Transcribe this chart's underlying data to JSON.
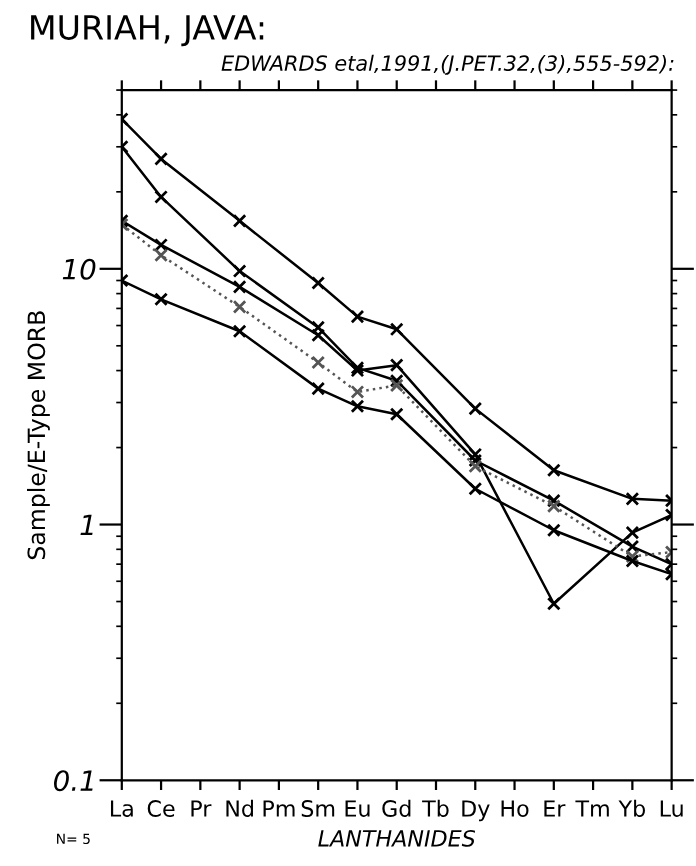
{
  "chart_data": {
    "type": "line",
    "title": "MURIAH, JAVA:",
    "subtitle": "EDWARDS etal,1991,(J.PET.32,(3),555-592):",
    "xlabel": "LANTHANIDES",
    "ylabel": "Sample/E-Type MORB",
    "categories": [
      "La",
      "Ce",
      "Pr",
      "Nd",
      "Pm",
      "Sm",
      "Eu",
      "Gd",
      "Tb",
      "Dy",
      "Ho",
      "Er",
      "Tm",
      "Yb",
      "Lu"
    ],
    "series": [
      {
        "color": "#000000",
        "line_style": "solid",
        "values": [
          38.5,
          26.9,
          null,
          15.4,
          null,
          8.8,
          6.5,
          5.8,
          null,
          2.84,
          null,
          1.63,
          null,
          1.26,
          1.24
        ]
      },
      {
        "color": "#000000",
        "line_style": "solid",
        "values": [
          30.0,
          19.1,
          null,
          9.8,
          null,
          5.9,
          4.1,
          3.65,
          null,
          1.78,
          null,
          1.24,
          null,
          0.82,
          0.7
        ]
      },
      {
        "color": "#000000",
        "line_style": "solid",
        "values": [
          15.4,
          12.4,
          null,
          8.5,
          null,
          5.5,
          4.0,
          4.2,
          null,
          1.88,
          null,
          0.49,
          null,
          0.93,
          1.09
        ]
      },
      {
        "color": "#555555",
        "line_style": "dotted",
        "values": [
          14.9,
          11.3,
          null,
          7.1,
          null,
          4.3,
          3.3,
          3.5,
          null,
          1.69,
          null,
          1.18,
          null,
          0.75,
          0.78
        ]
      },
      {
        "color": "#000000",
        "line_style": "solid",
        "values": [
          9.0,
          7.6,
          null,
          5.7,
          null,
          3.4,
          2.9,
          2.7,
          null,
          1.38,
          null,
          0.95,
          null,
          0.72,
          0.64
        ]
      }
    ],
    "log": "y",
    "ylim": [
      0.1,
      50
    ],
    "yticks": [
      0.1,
      1,
      10
    ],
    "grid": false,
    "marker": "cross",
    "annotations": [
      "N= 5"
    ]
  }
}
